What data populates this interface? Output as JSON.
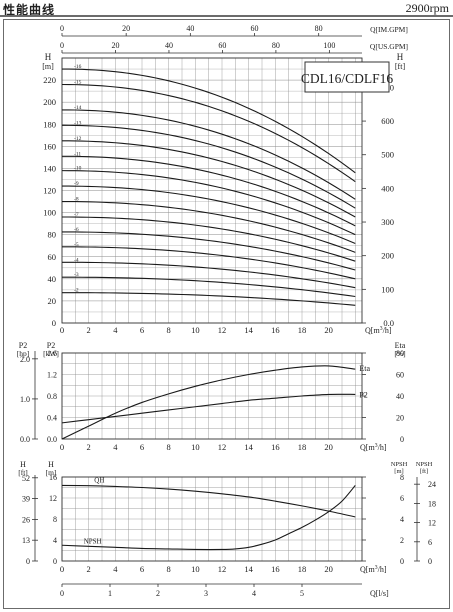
{
  "header": {
    "title": "性能曲线",
    "speed": "2900rpm"
  },
  "chart_data": [
    {
      "type": "line",
      "name": "head-curves",
      "legend_box": "CDL16/CDLF16",
      "top_axis_im": {
        "label": "Q[IM.GPM]",
        "ticks": [
          0,
          20,
          40,
          60,
          80
        ],
        "range": [
          0,
          93.5
        ]
      },
      "top_axis_us": {
        "label": "Q[US.GPM]",
        "ticks": [
          0,
          20,
          40,
          60,
          80,
          100
        ],
        "range": [
          0,
          112.2
        ]
      },
      "x": {
        "label": "Q[m³/h]",
        "range": [
          0,
          22.5
        ],
        "ticks": [
          0,
          2,
          4,
          6,
          8,
          10,
          12,
          14,
          16,
          18,
          20
        ]
      },
      "y_left": {
        "label": "H",
        "unit": "[m]",
        "range": [
          0,
          240
        ],
        "ticks": [
          0,
          20,
          40,
          60,
          80,
          100,
          120,
          140,
          160,
          180,
          200,
          220
        ]
      },
      "y_right": {
        "label": "H",
        "unit": "[ft]",
        "range": [
          0,
          787.4
        ],
        "ticks": [
          "0.0",
          "100",
          "200",
          "300",
          "400",
          "500",
          "600",
          "700"
        ]
      },
      "grid": true,
      "series": [
        {
          "name": "-2",
          "shut_off": 27.5,
          "end_head": 16
        },
        {
          "name": "-3",
          "shut_off": 41.5,
          "end_head": 24
        },
        {
          "name": "-4",
          "shut_off": 55,
          "end_head": 32
        },
        {
          "name": "-5",
          "shut_off": 69,
          "end_head": 40
        },
        {
          "name": "-6",
          "shut_off": 82.5,
          "end_head": 48
        },
        {
          "name": "-7",
          "shut_off": 96,
          "end_head": 56
        },
        {
          "name": "-8",
          "shut_off": 110,
          "end_head": 64
        },
        {
          "name": "-9",
          "shut_off": 124,
          "end_head": 72
        },
        {
          "name": "-10",
          "shut_off": 138,
          "end_head": 80
        },
        {
          "name": "-11",
          "shut_off": 151,
          "end_head": 88
        },
        {
          "name": "-12",
          "shut_off": 165,
          "end_head": 96
        },
        {
          "name": "-13",
          "shut_off": 179,
          "end_head": 104
        },
        {
          "name": "-14",
          "shut_off": 193,
          "end_head": 112
        },
        {
          "name": "-15",
          "shut_off": 216,
          "end_head": 128
        },
        {
          "name": "-16",
          "shut_off": 230,
          "end_head": 136
        }
      ],
      "curve_end_q": 22
    },
    {
      "type": "line",
      "name": "power-efficiency",
      "x": {
        "label": "Q[m³/h]",
        "range": [
          0,
          22.5
        ],
        "ticks": [
          0,
          2,
          4,
          6,
          8,
          10,
          12,
          14,
          16,
          18,
          20
        ]
      },
      "y_left_hp": {
        "label": "P2",
        "unit": "[hp]",
        "ticks": [
          "0.0",
          "1.0",
          "2.0"
        ]
      },
      "y_left_kw": {
        "label": "P2",
        "unit": "[kW]",
        "range": [
          0,
          1.6
        ],
        "ticks": [
          "0.0",
          "0.4",
          "0.8",
          "1.2",
          "1.6"
        ]
      },
      "y_right": {
        "label": "Eta",
        "unit": "[%]",
        "range": [
          0,
          80
        ],
        "ticks": [
          0,
          20,
          40,
          60,
          80
        ]
      },
      "grid": true,
      "series": [
        {
          "name": "Eta",
          "axis": "right",
          "x": [
            0,
            2,
            4,
            6,
            8,
            10,
            12,
            14,
            16,
            18,
            20,
            22
          ],
          "y": [
            0,
            12,
            24,
            34,
            42,
            49,
            55,
            60,
            64,
            67,
            68,
            65
          ]
        },
        {
          "name": "P2",
          "axis": "left",
          "x": [
            0,
            2,
            4,
            6,
            8,
            10,
            12,
            14,
            16,
            18,
            20,
            22
          ],
          "y": [
            0.3,
            0.36,
            0.42,
            0.48,
            0.54,
            0.6,
            0.66,
            0.72,
            0.76,
            0.8,
            0.83,
            0.83
          ]
        }
      ]
    },
    {
      "type": "line",
      "name": "qh-npsh",
      "x": {
        "label": "Q[m³/h]",
        "range": [
          0,
          22.5
        ],
        "ticks": [
          0,
          2,
          4,
          6,
          8,
          10,
          12,
          14,
          16,
          18,
          20
        ]
      },
      "x_ls": {
        "label": "Q[l/s]",
        "range": [
          0,
          6.25
        ],
        "ticks": [
          0,
          1,
          2,
          3,
          4,
          5
        ]
      },
      "y_left_ft": {
        "label": "H",
        "unit": "[ft]",
        "ticks": [
          0,
          13,
          26,
          39,
          52
        ]
      },
      "y_left_m": {
        "label": "H",
        "unit": "[m]",
        "range": [
          0,
          16
        ],
        "ticks": [
          0,
          4,
          8,
          12,
          16
        ]
      },
      "y_right_m": {
        "label": "NPSH",
        "unit": "[m]",
        "range": [
          0,
          8
        ],
        "ticks": [
          0,
          2,
          4,
          6,
          8
        ]
      },
      "y_right_ft": {
        "label": "NPSH",
        "unit": "[ft]",
        "ticks": [
          0,
          6,
          12,
          18,
          24
        ]
      },
      "grid": true,
      "series": [
        {
          "name": "QH",
          "axis": "left",
          "x": [
            0,
            2,
            4,
            6,
            8,
            10,
            12,
            14,
            16,
            18,
            20,
            22
          ],
          "y": [
            14.4,
            14.35,
            14.2,
            14.0,
            13.7,
            13.3,
            12.8,
            12.2,
            11.4,
            10.5,
            9.5,
            8.4
          ]
        },
        {
          "name": "NPSH",
          "axis": "right",
          "x": [
            0,
            2,
            4,
            6,
            8,
            10,
            12,
            13,
            14,
            15,
            16,
            17,
            18,
            19,
            20,
            21,
            22
          ],
          "y": [
            1.5,
            1.4,
            1.3,
            1.2,
            1.15,
            1.1,
            1.1,
            1.15,
            1.3,
            1.6,
            2.0,
            2.6,
            3.2,
            3.9,
            4.7,
            5.7,
            7.2
          ]
        }
      ]
    }
  ]
}
